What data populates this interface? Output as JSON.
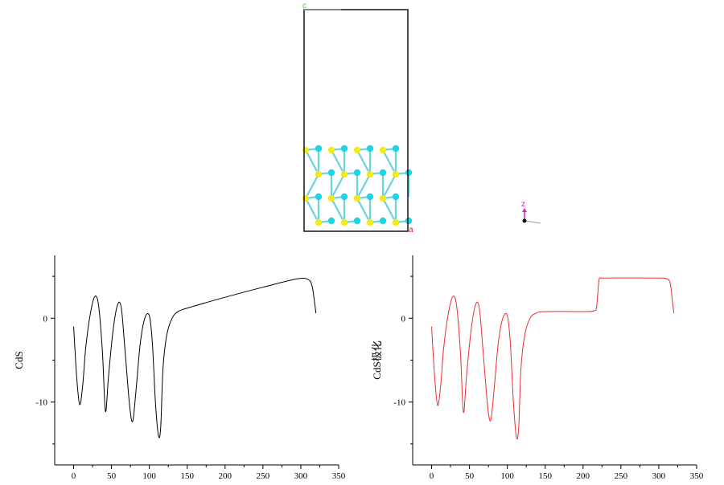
{
  "structure": {
    "cell_labels": {
      "c": "c",
      "a": "a"
    },
    "axis_triad": {
      "z_label": "z"
    },
    "colors": {
      "s_atom": "#f6e81e",
      "cd_atom": "#1fd3e6",
      "frame": "#222222",
      "c_label": "#3ccf3c",
      "a_label": "#e02020",
      "z_axis": "#d21fd2"
    }
  },
  "chart_data": [
    {
      "type": "line",
      "ylabel": "CdS",
      "xlim": [
        -25,
        350
      ],
      "ylim": [
        -17.5,
        7.5
      ],
      "x_ticks": [
        0,
        50,
        100,
        150,
        200,
        250,
        300,
        350
      ],
      "y_ticks": [
        0,
        -10
      ],
      "color": "#000000",
      "series": [
        {
          "x": [
            0,
            4,
            8,
            12,
            16,
            22,
            28,
            33,
            38,
            42,
            46,
            52,
            58,
            63,
            68,
            74,
            78,
            82,
            88,
            94,
            100,
            104,
            108,
            112,
            115,
            118,
            123,
            130,
            138,
            150,
            200,
            250,
            295,
            310,
            315,
            318,
            320
          ],
          "y": [
            -1,
            -7,
            -10.3,
            -8,
            -3.5,
            0.5,
            2.6,
            1.5,
            -4,
            -11.1,
            -7,
            -1.5,
            1.6,
            1.2,
            -4,
            -10.5,
            -12.3,
            -9,
            -3,
            0,
            0.3,
            -3,
            -10,
            -14,
            -13,
            -6,
            -2,
            0,
            0.8,
            1.2,
            2.5,
            3.7,
            4.7,
            4.6,
            3.8,
            2,
            0.6
          ]
        }
      ]
    },
    {
      "type": "line",
      "ylabel": "CdS极化",
      "xlim": [
        -25,
        350
      ],
      "ylim": [
        -17.5,
        7.5
      ],
      "x_ticks": [
        0,
        50,
        100,
        150,
        200,
        250,
        300,
        350
      ],
      "y_ticks": [
        0,
        -10
      ],
      "color": "#e53030",
      "series": [
        {
          "x": [
            0,
            4,
            8,
            12,
            16,
            22,
            28,
            33,
            38,
            42,
            46,
            52,
            58,
            63,
            68,
            74,
            78,
            82,
            88,
            94,
            100,
            104,
            108,
            112,
            115,
            118,
            123,
            130,
            138,
            150,
            200,
            215,
            218,
            221,
            224,
            230,
            300,
            310,
            315,
            318,
            320
          ],
          "y": [
            -1,
            -7,
            -10.4,
            -8,
            -3.5,
            0.5,
            2.6,
            1.5,
            -4,
            -11.2,
            -7,
            -1.5,
            1.6,
            1.2,
            -4,
            -10.5,
            -12.2,
            -9,
            -3,
            0,
            0.3,
            -3,
            -10,
            -14.2,
            -13,
            -6,
            -2,
            0,
            0.6,
            0.8,
            0.8,
            0.9,
            1.5,
            4.5,
            4.8,
            4.8,
            4.8,
            4.7,
            4.2,
            2,
            0.6
          ]
        }
      ]
    }
  ]
}
